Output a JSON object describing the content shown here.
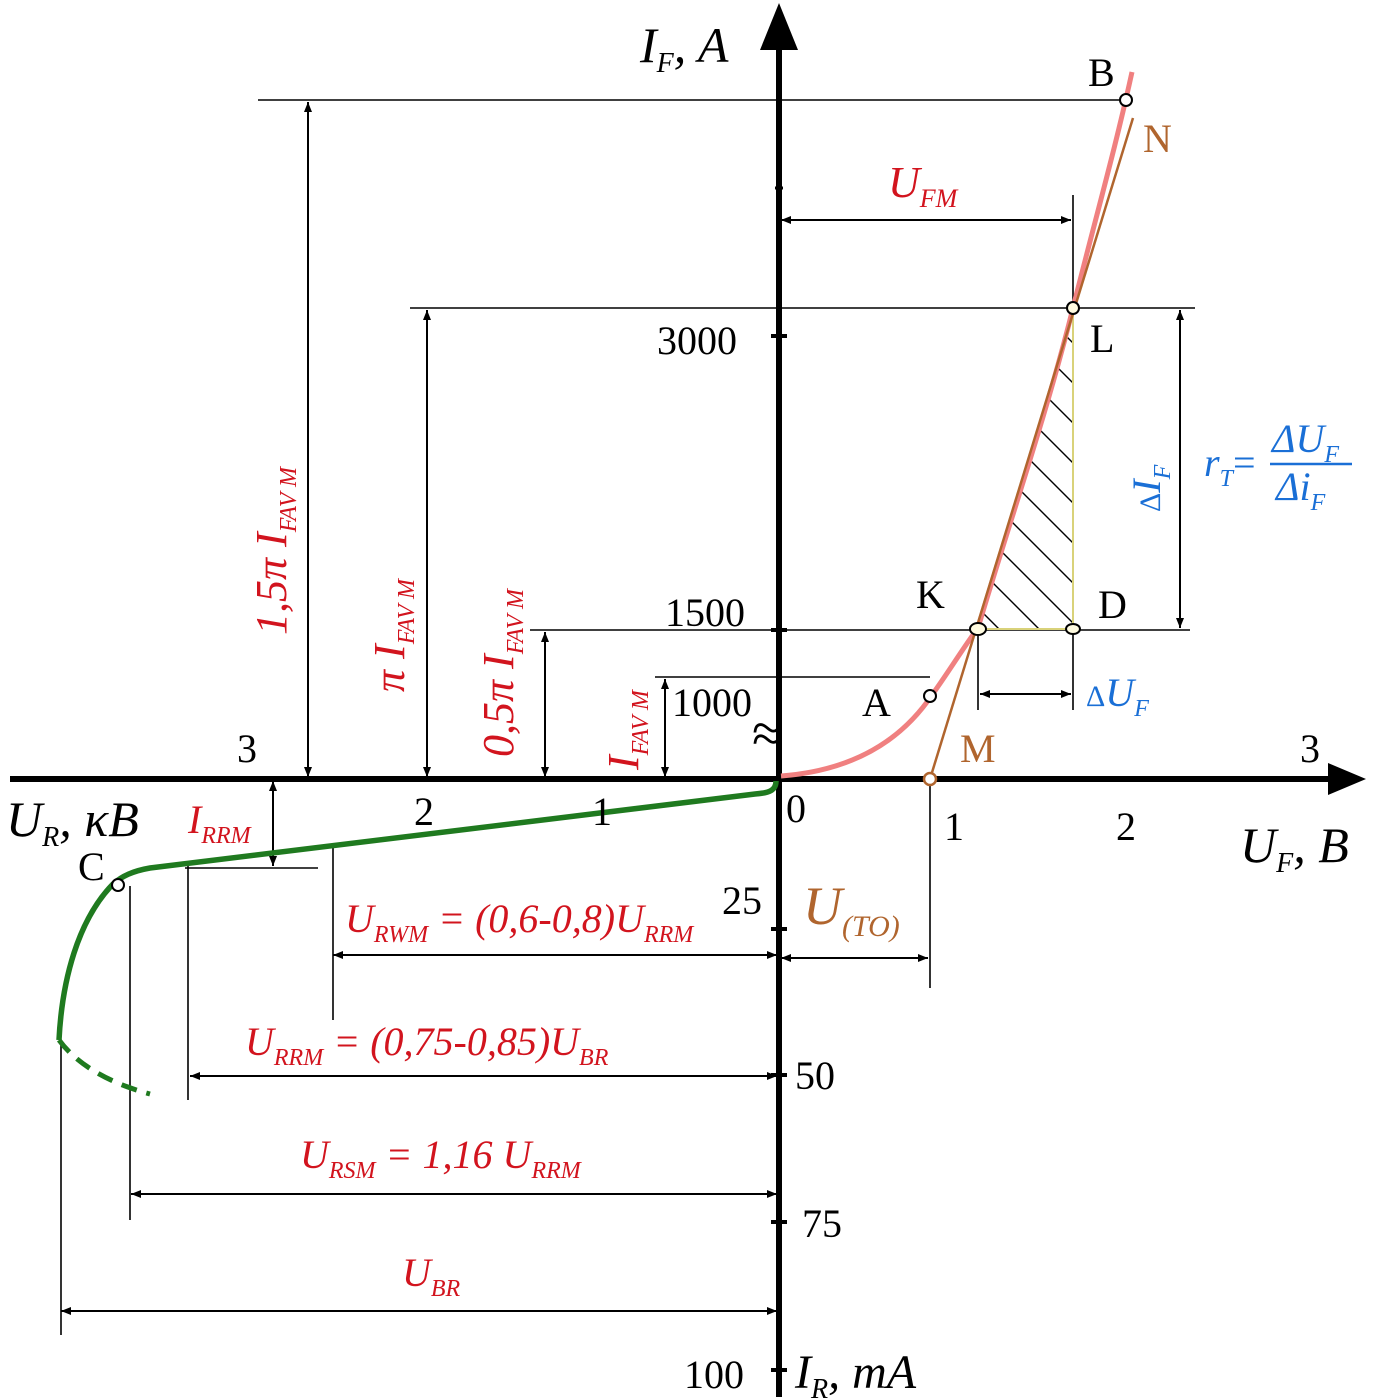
{
  "axes": {
    "if_symbol": "I",
    "if_sub": "F",
    "if_unit": ", A",
    "uf_symbol": "U",
    "uf_sub": "F",
    "uf_unit": ", B",
    "ur_symbol": "U",
    "ur_sub": "R",
    "ur_unit": ", κB",
    "ir_symbol": "I",
    "ir_sub": "R",
    "ir_unit": ", mA",
    "origin": "0",
    "break_mark": "≈"
  },
  "ticks": {
    "uf": [
      "1",
      "2",
      "3"
    ],
    "ur": [
      "1",
      "2",
      "3"
    ],
    "if": [
      "1000",
      "1500",
      "3000"
    ],
    "ir": [
      "25",
      "50",
      "75",
      "100"
    ]
  },
  "points": {
    "A": "A",
    "B": "B",
    "C": "C",
    "D": "D",
    "K": "K",
    "L": "L",
    "M": "M",
    "N": "N"
  },
  "labels": {
    "ufm_main": "U",
    "ufm_sub": "FM",
    "uto_main": "U",
    "uto_sub": "(TO)",
    "delta_if_delta": "Δ",
    "delta_if_main": "I",
    "delta_if_sub": "F",
    "delta_uf_delta": "Δ",
    "delta_uf_main": "U",
    "delta_uf_sub": "F",
    "rt_r": "r",
    "rt_sub": "T",
    "rt_eq": "=",
    "rt_num": "ΔU",
    "rt_num_sub": "F",
    "rt_den": "Δi",
    "rt_den_sub": "F",
    "ifavm_main": "I",
    "ifavm_sub": "FAV M",
    "half_pi_prefix": "0,5π I",
    "half_pi_sub": "FAV M",
    "pi_prefix": "π I",
    "pi_sub": "FAV M",
    "onehalf_pi_prefix": "1,5π I",
    "onehalf_pi_sub": "FAV M",
    "irrm_main": "I",
    "irrm_sub": "RRM",
    "urwm_a": "U",
    "urwm_a_sub": "RWM",
    "urwm_b": " = (0,6-0,8)U",
    "urwm_b_sub": "RRM",
    "urrm_a": "U",
    "urrm_a_sub": "RRM",
    "urrm_b": " = (0,75-0,85)U",
    "urrm_b_sub": "BR",
    "ursm_a": "U",
    "ursm_a_sub": "RSM",
    "ursm_b": " = 1,16 U",
    "ursm_b_sub": "RRM",
    "ubr_main": "U",
    "ubr_sub": "BR"
  },
  "colors": {
    "forward_curve": "#f08080",
    "reverse_curve": "#1f7a1f",
    "tangent": "#b0652e",
    "annotation_red": "#d2141e",
    "annotation_blue": "#1a6fd6",
    "axis": "#000000"
  }
}
